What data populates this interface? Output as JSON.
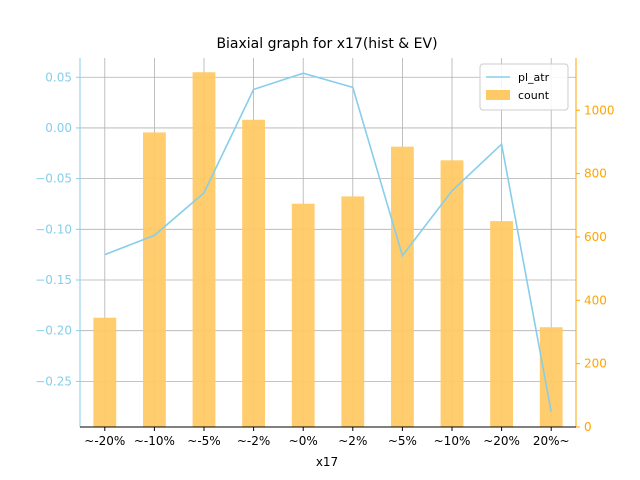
{
  "chart_data": {
    "type": "bar+line",
    "title": "Biaxial graph for x17(hist & EV)",
    "xlabel": "x17",
    "categories": [
      "~-20%",
      "~-10%",
      "~-5%",
      "~-2%",
      "~0%",
      "~2%",
      "~5%",
      "~10%",
      "~20%",
      "20%~"
    ],
    "series": [
      {
        "name": "count",
        "type": "bar",
        "axis": "right",
        "color": "#ffc966",
        "values": [
          345,
          930,
          1120,
          970,
          705,
          728,
          885,
          842,
          650,
          315
        ]
      },
      {
        "name": "pl_atr",
        "type": "line",
        "axis": "left",
        "color": "#87ceeb",
        "values": [
          -0.125,
          -0.106,
          -0.064,
          0.038,
          0.054,
          0.04,
          -0.126,
          -0.062,
          -0.016,
          -0.28
        ]
      }
    ],
    "left_axis": {
      "ylim": [
        -0.295,
        0.069
      ],
      "ticks": [
        0.05,
        0.0,
        -0.05,
        -0.1,
        -0.15,
        -0.2,
        -0.25
      ],
      "tick_labels": [
        "0.05",
        "0.00",
        "−0.05",
        "−0.10",
        "−0.15",
        "−0.20",
        "−0.25"
      ],
      "color": "#87ceeb"
    },
    "right_axis": {
      "ylim": [
        0,
        1165
      ],
      "ticks": [
        0,
        200,
        400,
        600,
        800,
        1000
      ],
      "tick_labels": [
        "0",
        "200",
        "400",
        "600",
        "800",
        "1000"
      ],
      "color": "#ffa500"
    },
    "grid": true,
    "legend": {
      "position": "top-right",
      "entries": [
        "pl_atr",
        "count"
      ]
    }
  }
}
